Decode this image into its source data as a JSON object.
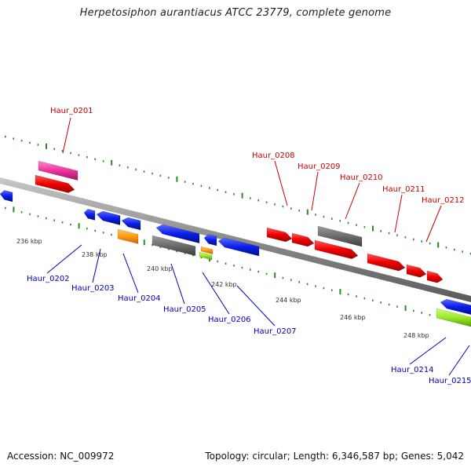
{
  "title": "Herpetosiphon aurantiacus ATCC 23779, complete genome",
  "footer": {
    "accession": "Accession: NC_009972",
    "topology": "Topology: circular; Length: 6,346,587 bp; Genes: 5,042"
  },
  "colors": {
    "backbone": "#8a8a8a",
    "ticks": "#2a8a2a",
    "forward_label": "#c80000",
    "reverse_label": "#0000b8"
  },
  "scale_labels": [
    "236 kbp",
    "238 kbp",
    "240 kbp",
    "242 kbp",
    "244 kbp",
    "246 kbp",
    "248 kbp"
  ],
  "genes_labeled": [
    {
      "name": "Haur_0201",
      "strand": "forward"
    },
    {
      "name": "Haur_0202",
      "strand": "reverse"
    },
    {
      "name": "Haur_0203",
      "strand": "reverse"
    },
    {
      "name": "Haur_0204",
      "strand": "reverse"
    },
    {
      "name": "Haur_0205",
      "strand": "reverse"
    },
    {
      "name": "Haur_0206",
      "strand": "reverse"
    },
    {
      "name": "Haur_0207",
      "strand": "reverse"
    },
    {
      "name": "Haur_0208",
      "strand": "forward"
    },
    {
      "name": "Haur_0209",
      "strand": "forward"
    },
    {
      "name": "Haur_0210",
      "strand": "forward"
    },
    {
      "name": "Haur_0211",
      "strand": "forward"
    },
    {
      "name": "Haur_0212",
      "strand": "forward"
    },
    {
      "name": "Haur_0214",
      "strand": "reverse"
    },
    {
      "name": "Haur_0215",
      "strand": "reverse"
    }
  ]
}
